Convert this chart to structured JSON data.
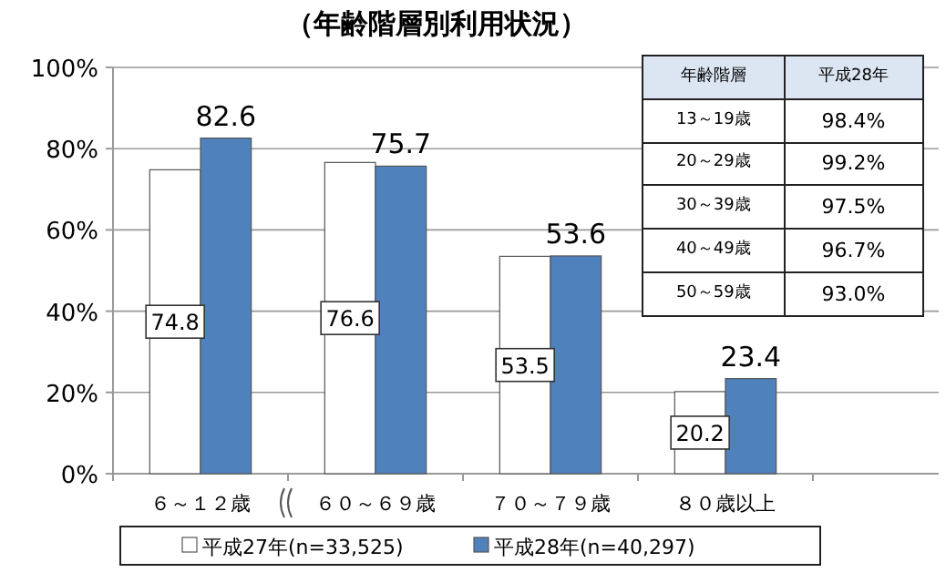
{
  "chart_data": [
    {
      "type": "bar",
      "title": "（年齢階層別利用状況）",
      "categories": [
        "６～１２歳",
        "６０～６９歳",
        "７０～７９歳",
        "８０歳以上"
      ],
      "series": [
        {
          "name": "平成27年(n=33,525)",
          "color": "#ffffff",
          "values": [
            74.8,
            76.6,
            53.5,
            20.2
          ]
        },
        {
          "name": "平成28年(n=40,297)",
          "color": "#4f81bd",
          "values": [
            82.6,
            75.7,
            53.6,
            23.4
          ]
        }
      ],
      "ylim": [
        0,
        100
      ],
      "yticks": [
        {
          "value": 0,
          "label": "0%"
        },
        {
          "value": 20,
          "label": "20%"
        },
        {
          "value": 40,
          "label": "40%"
        },
        {
          "value": 60,
          "label": "60%"
        },
        {
          "value": 80,
          "label": "80%"
        },
        {
          "value": 100,
          "label": "100%"
        }
      ],
      "grid": "y",
      "legend": "bottom",
      "data_labels": true
    },
    {
      "type": "other",
      "annotations": [
        "年齢階層",
        "平成28年",
        "13～19歳",
        "98.4%",
        "20～29歳",
        "99.2%",
        "30～39歳",
        "97.5%",
        "40～49歳",
        "96.7%",
        "50～59歳",
        "93.0%"
      ]
    }
  ]
}
